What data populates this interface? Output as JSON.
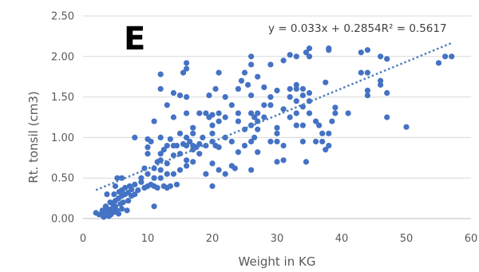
{
  "panel_letter": "E",
  "chart_data": {
    "type": "scatter",
    "title": "",
    "xlabel": "Weight in KG",
    "ylabel": "Rt. tonsil (cm3)",
    "xlim": [
      0,
      60
    ],
    "ylim": [
      0,
      2.5
    ],
    "xticks": [
      "0",
      "10",
      "20",
      "30",
      "40",
      "50",
      "60"
    ],
    "yticks": [
      "0.00",
      "0.50",
      "1.00",
      "1.50",
      "2.00",
      "2.50"
    ],
    "grid": "horizontal",
    "legend": "none",
    "point_color": "#4472c4",
    "trendline": {
      "type": "linear",
      "slope": 0.033,
      "intercept": 0.2854,
      "equation_label": "y = 0.033x + 0.2854R² = 0.5617",
      "style": "dotted",
      "x_range": [
        2,
        57
      ]
    },
    "points": [
      [
        2,
        0.07
      ],
      [
        2.5,
        0.05
      ],
      [
        3,
        0.1
      ],
      [
        3,
        0.05
      ],
      [
        3.2,
        0.02
      ],
      [
        3.5,
        0.08
      ],
      [
        3.5,
        0.15
      ],
      [
        3.7,
        0.3
      ],
      [
        3.8,
        0.12
      ],
      [
        4,
        0.03
      ],
      [
        4,
        0.1
      ],
      [
        4.2,
        0.2
      ],
      [
        4.3,
        0.05
      ],
      [
        4.5,
        0.12
      ],
      [
        4.6,
        0.18
      ],
      [
        4.8,
        0.08
      ],
      [
        4.8,
        0.3
      ],
      [
        5,
        0.15
      ],
      [
        5,
        0.22
      ],
      [
        5,
        0.4
      ],
      [
        5.2,
        0.1
      ],
      [
        5.3,
        0.5
      ],
      [
        5.5,
        0.06
      ],
      [
        5.5,
        0.25
      ],
      [
        5.6,
        0.33
      ],
      [
        5.8,
        0.18
      ],
      [
        6,
        0.12
      ],
      [
        6,
        0.28
      ],
      [
        6,
        0.35
      ],
      [
        6,
        0.5
      ],
      [
        6.2,
        0.2
      ],
      [
        6.5,
        0.3
      ],
      [
        6.5,
        0.38
      ],
      [
        6.8,
        0.1
      ],
      [
        7,
        0.22
      ],
      [
        7,
        0.32
      ],
      [
        7.2,
        0.4
      ],
      [
        7.5,
        0.28
      ],
      [
        7.5,
        0.36
      ],
      [
        8,
        0.3
      ],
      [
        8,
        0.42
      ],
      [
        8,
        1.0
      ],
      [
        8.5,
        0.35
      ],
      [
        9,
        0.5
      ],
      [
        9,
        0.45
      ],
      [
        9.5,
        0.38
      ],
      [
        9.5,
        0.62
      ],
      [
        10,
        0.4
      ],
      [
        10,
        0.55
      ],
      [
        10,
        0.8
      ],
      [
        10,
        0.88
      ],
      [
        10,
        0.98
      ],
      [
        10.5,
        0.42
      ],
      [
        10.5,
        0.95
      ],
      [
        11,
        0.15
      ],
      [
        11,
        0.4
      ],
      [
        11,
        0.5
      ],
      [
        11,
        0.62
      ],
      [
        11,
        1.2
      ],
      [
        11.5,
        0.38
      ],
      [
        11.5,
        0.7
      ],
      [
        12,
        0.5
      ],
      [
        12,
        0.6
      ],
      [
        12,
        0.72
      ],
      [
        12,
        0.8
      ],
      [
        12,
        1.0
      ],
      [
        12,
        1.6
      ],
      [
        12,
        1.78
      ],
      [
        12.5,
        0.4
      ],
      [
        12.5,
        0.85
      ],
      [
        13,
        0.38
      ],
      [
        13,
        0.55
      ],
      [
        13,
        0.68
      ],
      [
        13,
        0.9
      ],
      [
        13,
        1.4
      ],
      [
        13.5,
        0.4
      ],
      [
        13.5,
        0.98
      ],
      [
        14,
        0.55
      ],
      [
        14,
        0.78
      ],
      [
        14,
        0.9
      ],
      [
        14,
        1.25
      ],
      [
        14,
        1.55
      ],
      [
        14.5,
        0.42
      ],
      [
        14.5,
        0.9
      ],
      [
        15,
        0.6
      ],
      [
        15,
        0.8
      ],
      [
        15,
        1.05
      ],
      [
        15,
        1.52
      ],
      [
        15.5,
        0.92
      ],
      [
        15.5,
        1.8
      ],
      [
        16,
        0.65
      ],
      [
        16,
        0.72
      ],
      [
        16,
        0.9
      ],
      [
        16,
        1.0
      ],
      [
        16,
        1.3
      ],
      [
        16,
        1.5
      ],
      [
        16,
        1.85
      ],
      [
        16,
        1.92
      ],
      [
        16.5,
        0.95
      ],
      [
        17,
        0.7
      ],
      [
        17,
        0.85
      ],
      [
        17,
        0.9
      ],
      [
        17,
        1.05
      ],
      [
        17,
        1.12
      ],
      [
        17.5,
        0.88
      ],
      [
        18,
        0.8
      ],
      [
        18,
        0.92
      ],
      [
        18,
        1.3
      ],
      [
        18.5,
        1.0
      ],
      [
        19,
        0.55
      ],
      [
        19,
        0.9
      ],
      [
        19,
        1.3
      ],
      [
        19.5,
        1.25
      ],
      [
        19.5,
        1.52
      ],
      [
        20,
        0.4
      ],
      [
        20,
        0.68
      ],
      [
        20,
        0.95
      ],
      [
        20,
        1.05
      ],
      [
        20,
        1.15
      ],
      [
        20,
        1.28
      ],
      [
        20.5,
        0.9
      ],
      [
        20.5,
        1.6
      ],
      [
        21,
        0.6
      ],
      [
        21,
        0.88
      ],
      [
        21,
        1.2
      ],
      [
        21,
        1.3
      ],
      [
        21,
        1.8
      ],
      [
        22,
        0.55
      ],
      [
        22,
        1.0
      ],
      [
        22,
        1.25
      ],
      [
        22,
        1.5
      ],
      [
        23,
        0.65
      ],
      [
        23,
        0.95
      ],
      [
        23,
        1.4
      ],
      [
        23.5,
        0.62
      ],
      [
        24,
        0.82
      ],
      [
        24,
        1.2
      ],
      [
        24,
        1.3
      ],
      [
        24,
        1.6
      ],
      [
        24.5,
        1.7
      ],
      [
        25,
        0.9
      ],
      [
        25,
        1.1
      ],
      [
        25,
        1.8
      ],
      [
        25.5,
        1.65
      ],
      [
        26,
        0.6
      ],
      [
        26,
        0.95
      ],
      [
        26,
        1.15
      ],
      [
        26,
        1.3
      ],
      [
        26,
        1.52
      ],
      [
        26,
        1.9
      ],
      [
        26,
        2.0
      ],
      [
        26.5,
        1.0
      ],
      [
        26.5,
        1.25
      ],
      [
        27,
        0.82
      ],
      [
        27,
        1.1
      ],
      [
        27,
        1.2
      ],
      [
        27,
        1.3
      ],
      [
        27,
        1.75
      ],
      [
        28,
        1.25
      ],
      [
        28,
        1.4
      ],
      [
        28,
        1.62
      ],
      [
        29,
        0.95
      ],
      [
        29,
        1.4
      ],
      [
        29,
        1.5
      ],
      [
        29,
        1.9
      ],
      [
        30,
        0.7
      ],
      [
        30,
        0.95
      ],
      [
        30,
        1.05
      ],
      [
        30,
        1.12
      ],
      [
        30,
        1.58
      ],
      [
        31,
        0.72
      ],
      [
        31,
        0.9
      ],
      [
        31,
        1.35
      ],
      [
        31,
        1.95
      ],
      [
        32,
        1.25
      ],
      [
        32,
        1.5
      ],
      [
        32,
        1.6
      ],
      [
        32,
        2.02
      ],
      [
        33,
        1.15
      ],
      [
        33,
        1.3
      ],
      [
        33,
        1.45
      ],
      [
        33,
        1.6
      ],
      [
        33,
        1.65
      ],
      [
        33,
        2.0
      ],
      [
        34,
        0.95
      ],
      [
        34,
        1.15
      ],
      [
        34,
        1.38
      ],
      [
        34,
        1.52
      ],
      [
        34,
        1.6
      ],
      [
        34.5,
        0.7
      ],
      [
        34.5,
        2.05
      ],
      [
        35,
        1.3
      ],
      [
        35,
        1.45
      ],
      [
        35,
        1.55
      ],
      [
        35,
        2.0
      ],
      [
        35,
        2.1
      ],
      [
        36,
        0.95
      ],
      [
        36,
        1.2
      ],
      [
        36.5,
        1.15
      ],
      [
        37,
        0.95
      ],
      [
        37,
        1.05
      ],
      [
        37.5,
        0.85
      ],
      [
        37.5,
        1.68
      ],
      [
        38,
        0.9
      ],
      [
        38,
        1.05
      ],
      [
        38,
        2.08
      ],
      [
        38,
        2.1
      ],
      [
        38.5,
        1.2
      ],
      [
        39,
        1.3
      ],
      [
        39,
        1.37
      ],
      [
        41,
        1.3
      ],
      [
        43,
        1.8
      ],
      [
        43,
        2.05
      ],
      [
        44,
        1.52
      ],
      [
        44,
        1.58
      ],
      [
        44,
        1.8
      ],
      [
        44,
        2.08
      ],
      [
        46,
        1.65
      ],
      [
        46,
        1.7
      ],
      [
        46,
        2.0
      ],
      [
        47,
        1.25
      ],
      [
        47,
        1.55
      ],
      [
        47,
        1.97
      ],
      [
        50,
        1.13
      ],
      [
        55,
        1.92
      ],
      [
        56,
        2.0
      ],
      [
        57,
        2.0
      ]
    ]
  }
}
